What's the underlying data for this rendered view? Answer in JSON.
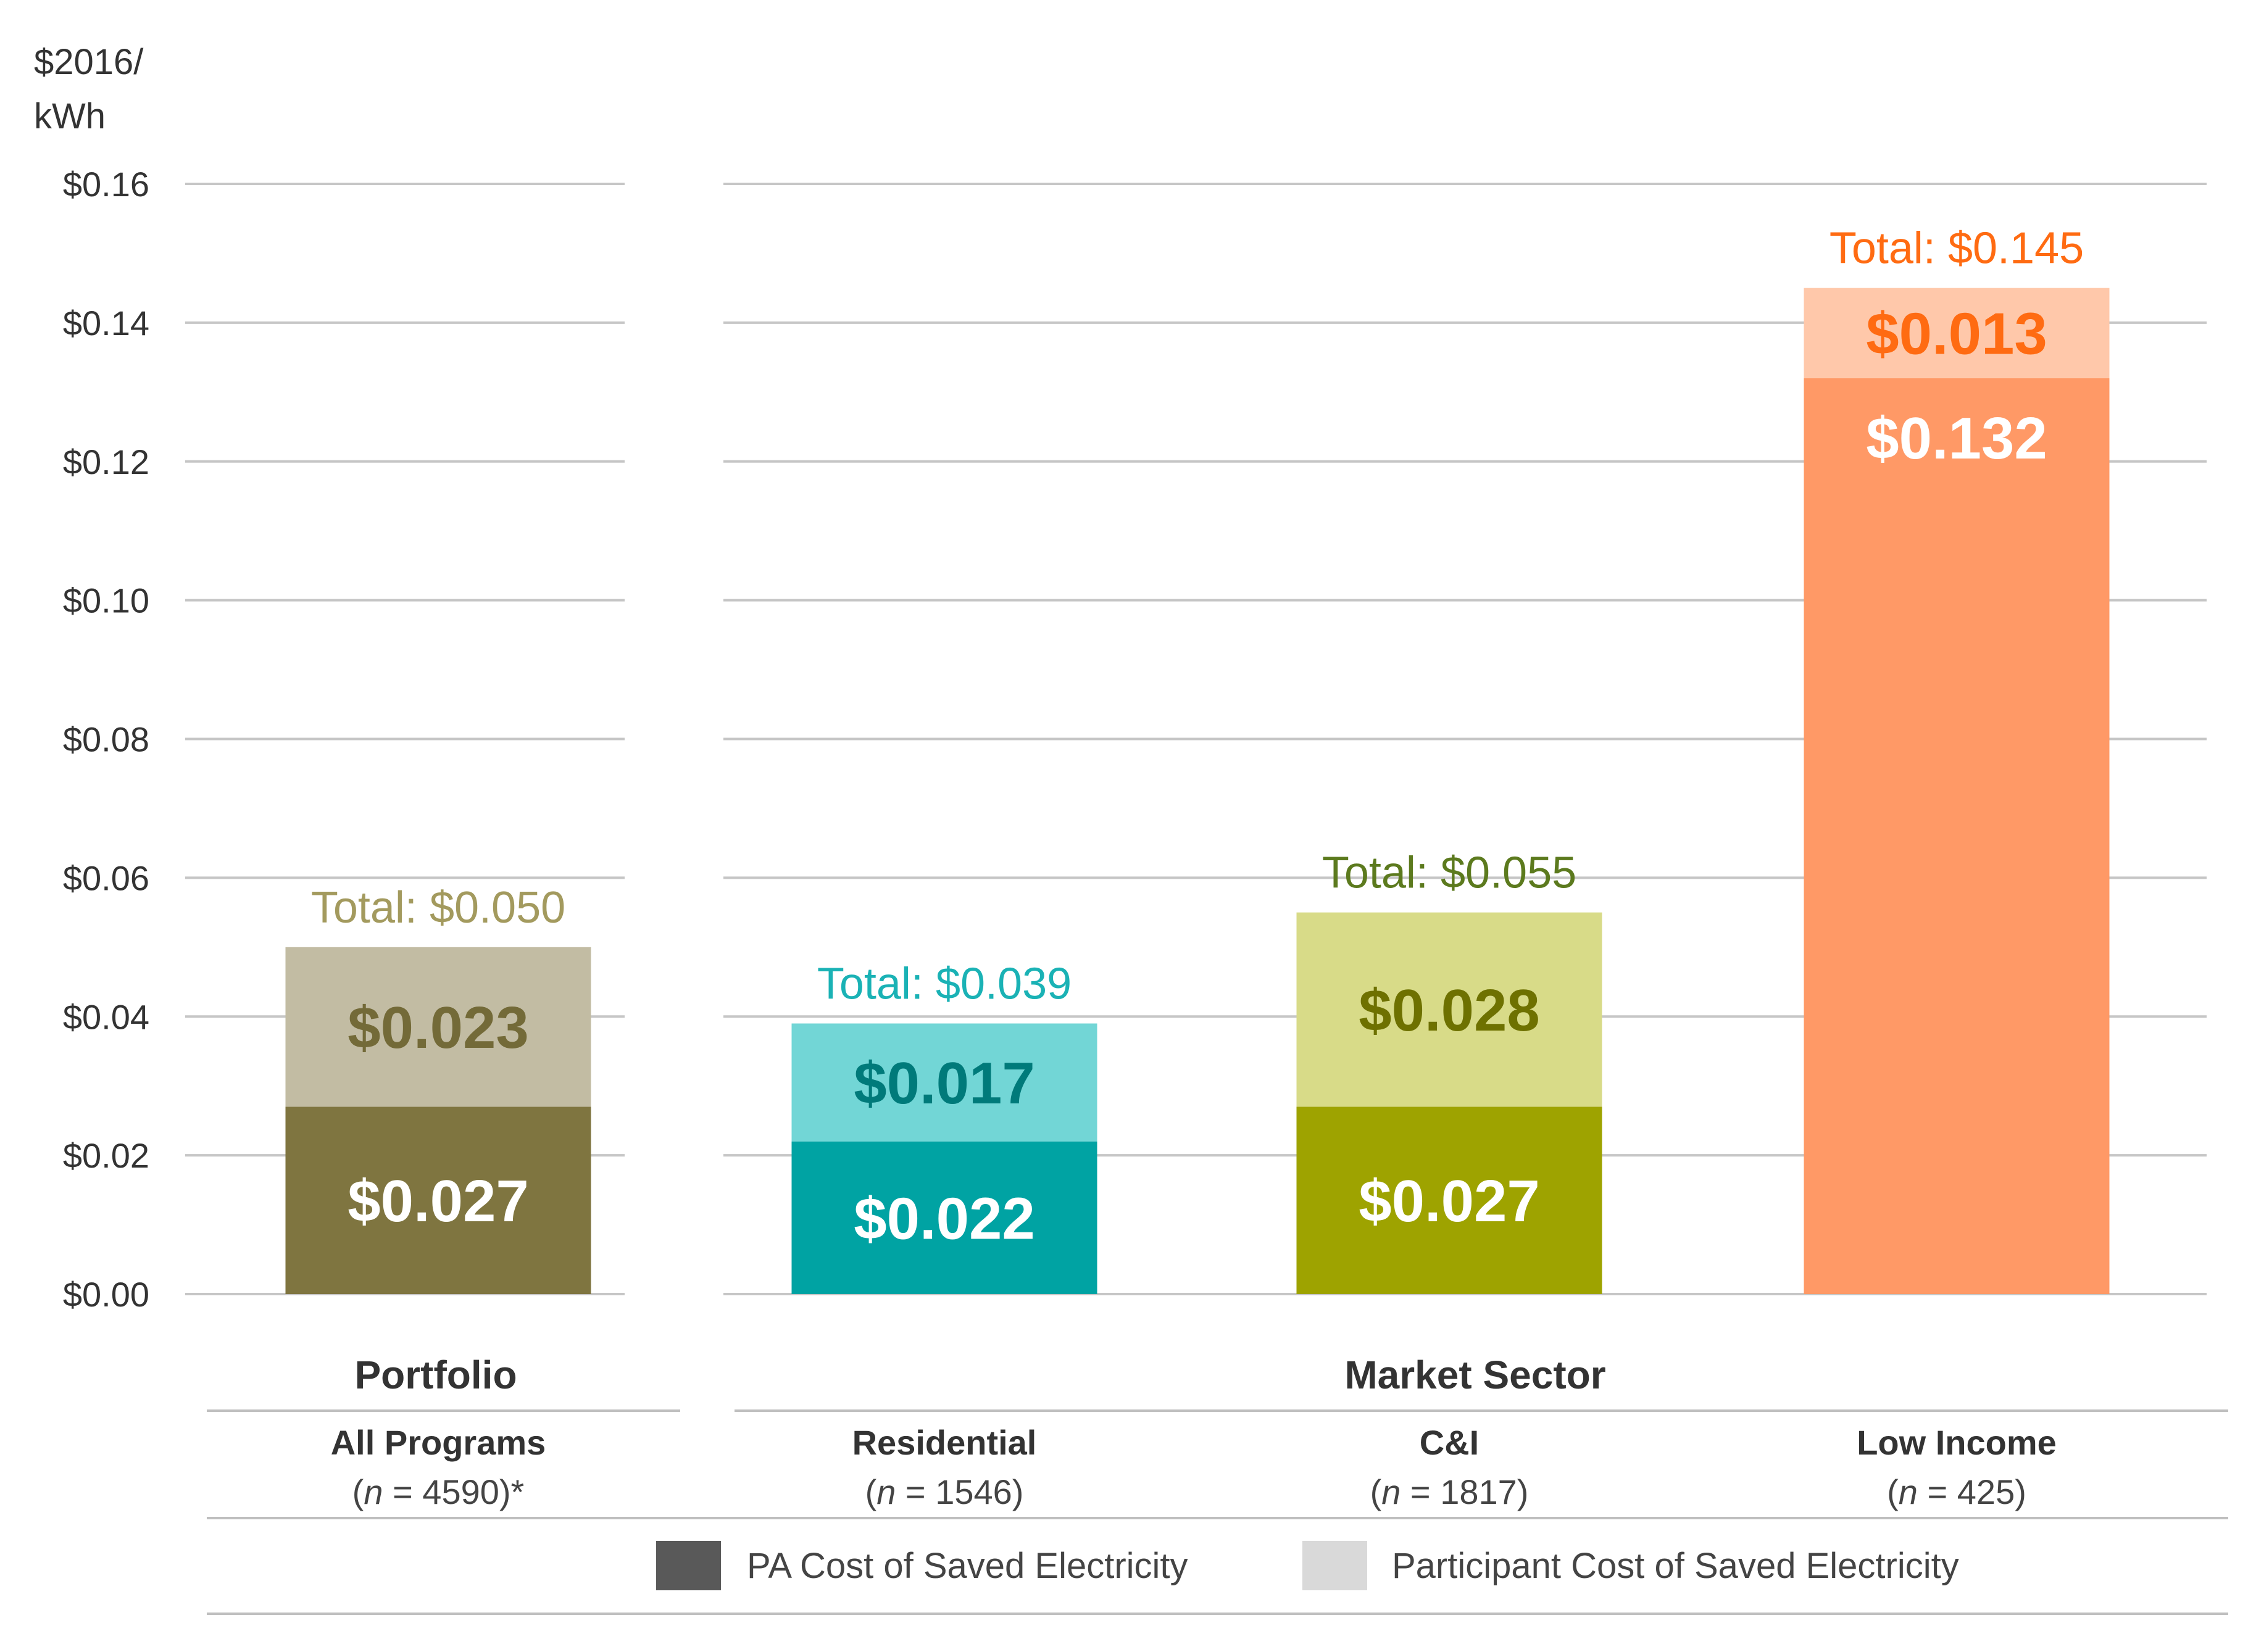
{
  "chart_data": {
    "type": "bar",
    "stacked": true,
    "ylabel_lines": [
      "$2016/",
      "kWh"
    ],
    "ylim": [
      0,
      0.16
    ],
    "yticks": [
      {
        "value": 0.0,
        "label": "$0.00"
      },
      {
        "value": 0.02,
        "label": "$0.02"
      },
      {
        "value": 0.04,
        "label": "$0.04"
      },
      {
        "value": 0.06,
        "label": "$0.06"
      },
      {
        "value": 0.08,
        "label": "$0.08"
      },
      {
        "value": 0.1,
        "label": "$0.10"
      },
      {
        "value": 0.12,
        "label": "$0.12"
      },
      {
        "value": 0.14,
        "label": "$0.14"
      },
      {
        "value": 0.16,
        "label": "$0.16"
      }
    ],
    "groups": [
      {
        "name": "Portfolio",
        "categories": [
          "All Programs"
        ]
      },
      {
        "name": "Market Sector",
        "categories": [
          "Residential",
          "C&I",
          "Low Income"
        ]
      }
    ],
    "categories": [
      {
        "name": "All Programs",
        "n_prefix": "(",
        "n_italic": "n",
        "n_suffix": " = 4590)*",
        "group": "Portfolio",
        "pa": 0.027,
        "participant": 0.023,
        "total": 0.05,
        "pa_label": "$0.027",
        "participant_label": "$0.023",
        "total_label": "Total: $0.050",
        "colors": {
          "pa": "#7f7540",
          "participant": "#c2bca3",
          "pa_text": "#ffffff",
          "participant_text": "#736a38",
          "total_text": "#a39a5e"
        }
      },
      {
        "name": "Residential",
        "n_prefix": "(",
        "n_italic": "n",
        "n_suffix": " = 1546)",
        "group": "Market Sector",
        "pa": 0.022,
        "participant": 0.017,
        "total": 0.039,
        "pa_label": "$0.022",
        "participant_label": "$0.017",
        "total_label": "Total: $0.039",
        "colors": {
          "pa": "#00a3a3",
          "participant": "#72d6d6",
          "pa_text": "#ffffff",
          "participant_text": "#007a7a",
          "total_text": "#1ab2b5"
        }
      },
      {
        "name": "C&I",
        "n_prefix": "(",
        "n_italic": "n",
        "n_suffix": " = 1817)",
        "group": "Market Sector",
        "pa": 0.027,
        "participant": 0.028,
        "total": 0.055,
        "pa_label": "$0.027",
        "participant_label": "$0.028",
        "total_label": "Total: $0.055",
        "colors": {
          "pa": "#9ea300",
          "participant": "#d8db88",
          "pa_text": "#ffffff",
          "participant_text": "#6e7100",
          "total_text": "#5c7a1e"
        }
      },
      {
        "name": "Low Income",
        "n_prefix": "(",
        "n_italic": "n",
        "n_suffix": " = 425)",
        "group": "Market Sector",
        "pa": 0.132,
        "participant": 0.013,
        "total": 0.145,
        "pa_label": "$0.132",
        "participant_label": "$0.013",
        "total_label": "Total: $0.145",
        "colors": {
          "pa": "#ff9966",
          "participant": "#ffc8aa",
          "pa_text": "#ffffff",
          "participant_text": "#ff6b12",
          "total_text": "#ff6b12"
        }
      }
    ],
    "legend": [
      {
        "label": "PA Cost of Saved Electricity",
        "color": "#595959"
      },
      {
        "label": "Participant Cost of Saved Electricity",
        "color": "#d9d9d9"
      }
    ],
    "gridlines": true
  }
}
